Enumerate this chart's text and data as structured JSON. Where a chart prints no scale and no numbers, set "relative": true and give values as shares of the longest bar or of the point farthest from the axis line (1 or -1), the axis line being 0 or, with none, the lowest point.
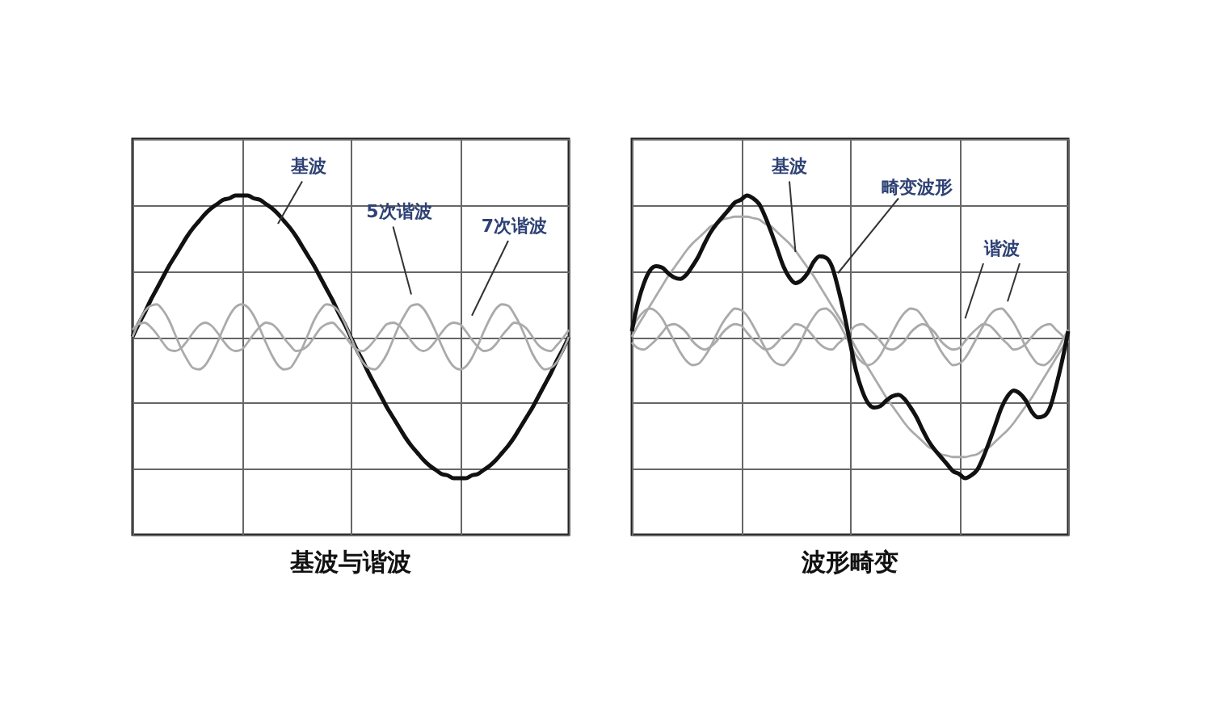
{
  "chart_data": [
    {
      "type": "line",
      "title": "基波与谐波",
      "relative": true,
      "grid": true,
      "tick_labels": false,
      "categories": [
        null,
        null,
        null,
        null,
        null,
        null,
        null,
        null,
        null,
        null,
        null,
        null,
        null,
        null,
        null,
        null,
        null,
        null,
        null,
        null,
        null,
        null,
        null,
        null,
        null,
        null,
        null,
        null,
        null,
        null,
        null,
        null,
        null,
        null,
        null,
        null,
        null,
        null,
        null,
        null,
        null,
        null,
        null,
        null,
        null,
        null,
        null,
        null,
        null,
        null,
        null,
        null,
        null,
        null,
        null,
        null,
        null,
        null,
        null,
        null,
        null,
        null,
        null,
        null,
        null,
        null,
        null,
        null,
        null,
        null,
        null,
        null,
        null
      ],
      "series": [
        {
          "color": "#111111",
          "values": [
            0,
            0.09,
            0.17,
            0.26,
            0.34,
            0.42,
            0.5,
            0.57,
            0.64,
            0.71,
            0.77,
            0.82,
            0.87,
            0.91,
            0.94,
            0.97,
            0.98,
            1,
            1,
            1,
            0.98,
            0.97,
            0.94,
            0.91,
            0.87,
            0.82,
            0.77,
            0.71,
            0.64,
            0.57,
            0.5,
            0.42,
            0.34,
            0.26,
            0.17,
            0.09,
            0,
            -0.09,
            -0.17,
            -0.26,
            -0.34,
            -0.42,
            -0.5,
            -0.57,
            -0.64,
            -0.71,
            -0.77,
            -0.82,
            -0.87,
            -0.91,
            -0.94,
            -0.97,
            -0.98,
            -1,
            -1,
            -1,
            -0.98,
            -0.97,
            -0.94,
            -0.91,
            -0.87,
            -0.82,
            -0.77,
            -0.71,
            -0.64,
            -0.57,
            -0.5,
            -0.42,
            -0.34,
            -0.26,
            -0.17,
            -0.09,
            0
          ]
        },
        {
          "color": "#aaaaaa",
          "values": [
            0,
            0.1,
            0.18,
            0.22,
            0.23,
            0.19,
            0.12,
            0.02,
            -0.08,
            -0.16,
            -0.22,
            -0.23,
            -0.2,
            -0.13,
            -0.04,
            0.06,
            0.15,
            0.21,
            0.23,
            0.21,
            0.15,
            0.06,
            -0.04,
            -0.13,
            -0.2,
            -0.23,
            -0.22,
            -0.16,
            -0.08,
            0.02,
            0.12,
            0.19,
            0.23,
            0.22,
            0.18,
            0.1,
            0,
            -0.1,
            -0.18,
            -0.22,
            -0.23,
            -0.19,
            -0.12,
            -0.02,
            0.08,
            0.16,
            0.22,
            0.23,
            0.2,
            0.13,
            0.04,
            -0.06,
            -0.15,
            -0.21,
            -0.23,
            -0.21,
            -0.15,
            -0.06,
            0.04,
            0.13,
            0.2,
            0.23,
            0.22,
            0.16,
            0.08,
            -0.02,
            -0.12,
            -0.19,
            -0.23,
            -0.22,
            -0.18,
            -0.1,
            0
          ]
        },
        {
          "color": "#aaaaaa",
          "values": [
            0.05,
            0.09,
            0.1,
            0.07,
            0.02,
            -0.04,
            -0.09,
            -0.1,
            -0.08,
            -0.03,
            0.03,
            0.08,
            0.1,
            0.08,
            0.03,
            -0.03,
            -0.08,
            -0.1,
            -0.09,
            -0.04,
            0.02,
            0.07,
            0.1,
            0.09,
            0.05,
            -0.01,
            -0.06,
            -0.1,
            -0.09,
            -0.06,
            0,
            0.06,
            0.09,
            0.1,
            0.06,
            0.01,
            -0.05,
            -0.09,
            -0.1,
            -0.07,
            -0.02,
            0.04,
            0.09,
            0.1,
            0.08,
            0.03,
            -0.03,
            -0.08,
            -0.1,
            -0.08,
            -0.03,
            0.03,
            0.08,
            0.1,
            0.09,
            0.04,
            -0.02,
            -0.07,
            -0.1,
            -0.09,
            -0.05,
            0.01,
            0.06,
            0.1,
            0.09,
            0.06,
            0,
            -0.06,
            -0.09,
            -0.1,
            -0.06,
            -0.01,
            0.05
          ]
        }
      ],
      "annotations": [
        "基波",
        "5次谐波",
        "7次谐波"
      ]
    },
    {
      "type": "line",
      "title": "波形畸变",
      "relative": true,
      "grid": true,
      "tick_labels": false,
      "categories": [
        null,
        null,
        null,
        null,
        null,
        null,
        null,
        null,
        null,
        null,
        null,
        null,
        null,
        null,
        null,
        null,
        null,
        null,
        null,
        null,
        null,
        null,
        null,
        null,
        null,
        null,
        null,
        null,
        null,
        null,
        null,
        null,
        null,
        null,
        null,
        null,
        null,
        null,
        null,
        null,
        null,
        null,
        null,
        null,
        null,
        null,
        null,
        null,
        null,
        null,
        null,
        null,
        null,
        null,
        null,
        null,
        null,
        null,
        null,
        null,
        null,
        null,
        null,
        null,
        null,
        null,
        null,
        null,
        null,
        null,
        null,
        null,
        null
      ],
      "series": [
        {
          "color": "#aaaaaa",
          "values": [
            0,
            0.08,
            0.15,
            0.22,
            0.29,
            0.36,
            0.43,
            0.49,
            0.55,
            0.61,
            0.66,
            0.7,
            0.74,
            0.78,
            0.8,
            0.83,
            0.84,
            0.85,
            0.85,
            0.85,
            0.84,
            0.83,
            0.8,
            0.78,
            0.74,
            0.7,
            0.66,
            0.61,
            0.55,
            0.49,
            0.43,
            0.36,
            0.29,
            0.22,
            0.15,
            0.08,
            0,
            -0.08,
            -0.15,
            -0.22,
            -0.29,
            -0.36,
            -0.43,
            -0.49,
            -0.55,
            -0.61,
            -0.66,
            -0.7,
            -0.74,
            -0.78,
            -0.8,
            -0.83,
            -0.84,
            -0.85,
            -0.85,
            -0.85,
            -0.84,
            -0.83,
            -0.8,
            -0.78,
            -0.74,
            -0.7,
            -0.66,
            -0.61,
            -0.55,
            -0.49,
            -0.43,
            -0.36,
            -0.29,
            -0.22,
            -0.15,
            -0.08,
            0
          ]
        },
        {
          "color": "#aaaaaa",
          "values": [
            0.05,
            0.13,
            0.18,
            0.2,
            0.18,
            0.13,
            0.05,
            -0.03,
            -0.11,
            -0.17,
            -0.2,
            -0.19,
            -0.14,
            -0.07,
            0.02,
            0.1,
            0.16,
            0.2,
            0.19,
            0.15,
            0.08,
            0,
            -0.08,
            -0.15,
            -0.19,
            -0.2,
            -0.16,
            -0.1,
            -0.02,
            0.07,
            0.14,
            0.19,
            0.2,
            0.17,
            0.11,
            0.03,
            -0.05,
            -0.13,
            -0.18,
            -0.2,
            -0.18,
            -0.13,
            -0.05,
            0.03,
            0.11,
            0.17,
            0.2,
            0.19,
            0.14,
            0.07,
            -0.02,
            -0.1,
            -0.16,
            -0.2,
            -0.19,
            -0.15,
            -0.08,
            0,
            0.08,
            0.15,
            0.19,
            0.2,
            0.16,
            0.1,
            0.02,
            -0.07,
            -0.14,
            -0.19,
            -0.2,
            -0.17,
            -0.11,
            -0.03,
            0.05
          ]
        },
        {
          "color": "#aaaaaa",
          "values": [
            -0.04,
            -0.08,
            -0.09,
            -0.06,
            -0.02,
            0.03,
            0.08,
            0.09,
            0.07,
            0.03,
            -0.03,
            -0.07,
            -0.09,
            -0.07,
            -0.03,
            0.03,
            0.07,
            0.09,
            0.08,
            0.03,
            -0.02,
            -0.06,
            -0.09,
            -0.08,
            -0.04,
            0.01,
            0.05,
            0.09,
            0.08,
            0.05,
            0,
            -0.05,
            -0.08,
            -0.09,
            -0.05,
            -0.01,
            0.04,
            0.08,
            0.09,
            0.06,
            0.02,
            -0.03,
            -0.08,
            -0.09,
            -0.07,
            -0.03,
            0.03,
            0.07,
            0.09,
            0.07,
            0.03,
            -0.03,
            -0.07,
            -0.09,
            -0.08,
            -0.03,
            0.02,
            0.06,
            0.09,
            0.08,
            0.04,
            -0.01,
            -0.05,
            -0.09,
            -0.08,
            -0.05,
            0,
            0.05,
            0.08,
            0.09,
            0.05,
            0.01,
            -0.04
          ]
        },
        {
          "color": "#111111",
          "values": [
            0.04,
            0.24,
            0.38,
            0.47,
            0.5,
            0.49,
            0.45,
            0.42,
            0.41,
            0.44,
            0.5,
            0.57,
            0.66,
            0.74,
            0.8,
            0.85,
            0.9,
            0.95,
            0.97,
            1,
            0.98,
            0.94,
            0.85,
            0.74,
            0.62,
            0.5,
            0.42,
            0.38,
            0.4,
            0.45,
            0.53,
            0.57,
            0.56,
            0.5,
            0.35,
            0.17,
            -0.04,
            -0.24,
            -0.38,
            -0.47,
            -0.5,
            -0.49,
            -0.45,
            -0.42,
            -0.41,
            -0.44,
            -0.5,
            -0.57,
            -0.66,
            -0.74,
            -0.8,
            -0.85,
            -0.9,
            -0.95,
            -0.97,
            -1,
            -0.98,
            -0.94,
            -0.85,
            -0.74,
            -0.62,
            -0.5,
            -0.42,
            -0.38,
            -0.4,
            -0.45,
            -0.53,
            -0.57,
            -0.56,
            -0.5,
            -0.35,
            -0.17,
            0.04
          ]
        }
      ],
      "annotations": [
        "基波",
        "畸变波形",
        "谐波"
      ]
    }
  ]
}
